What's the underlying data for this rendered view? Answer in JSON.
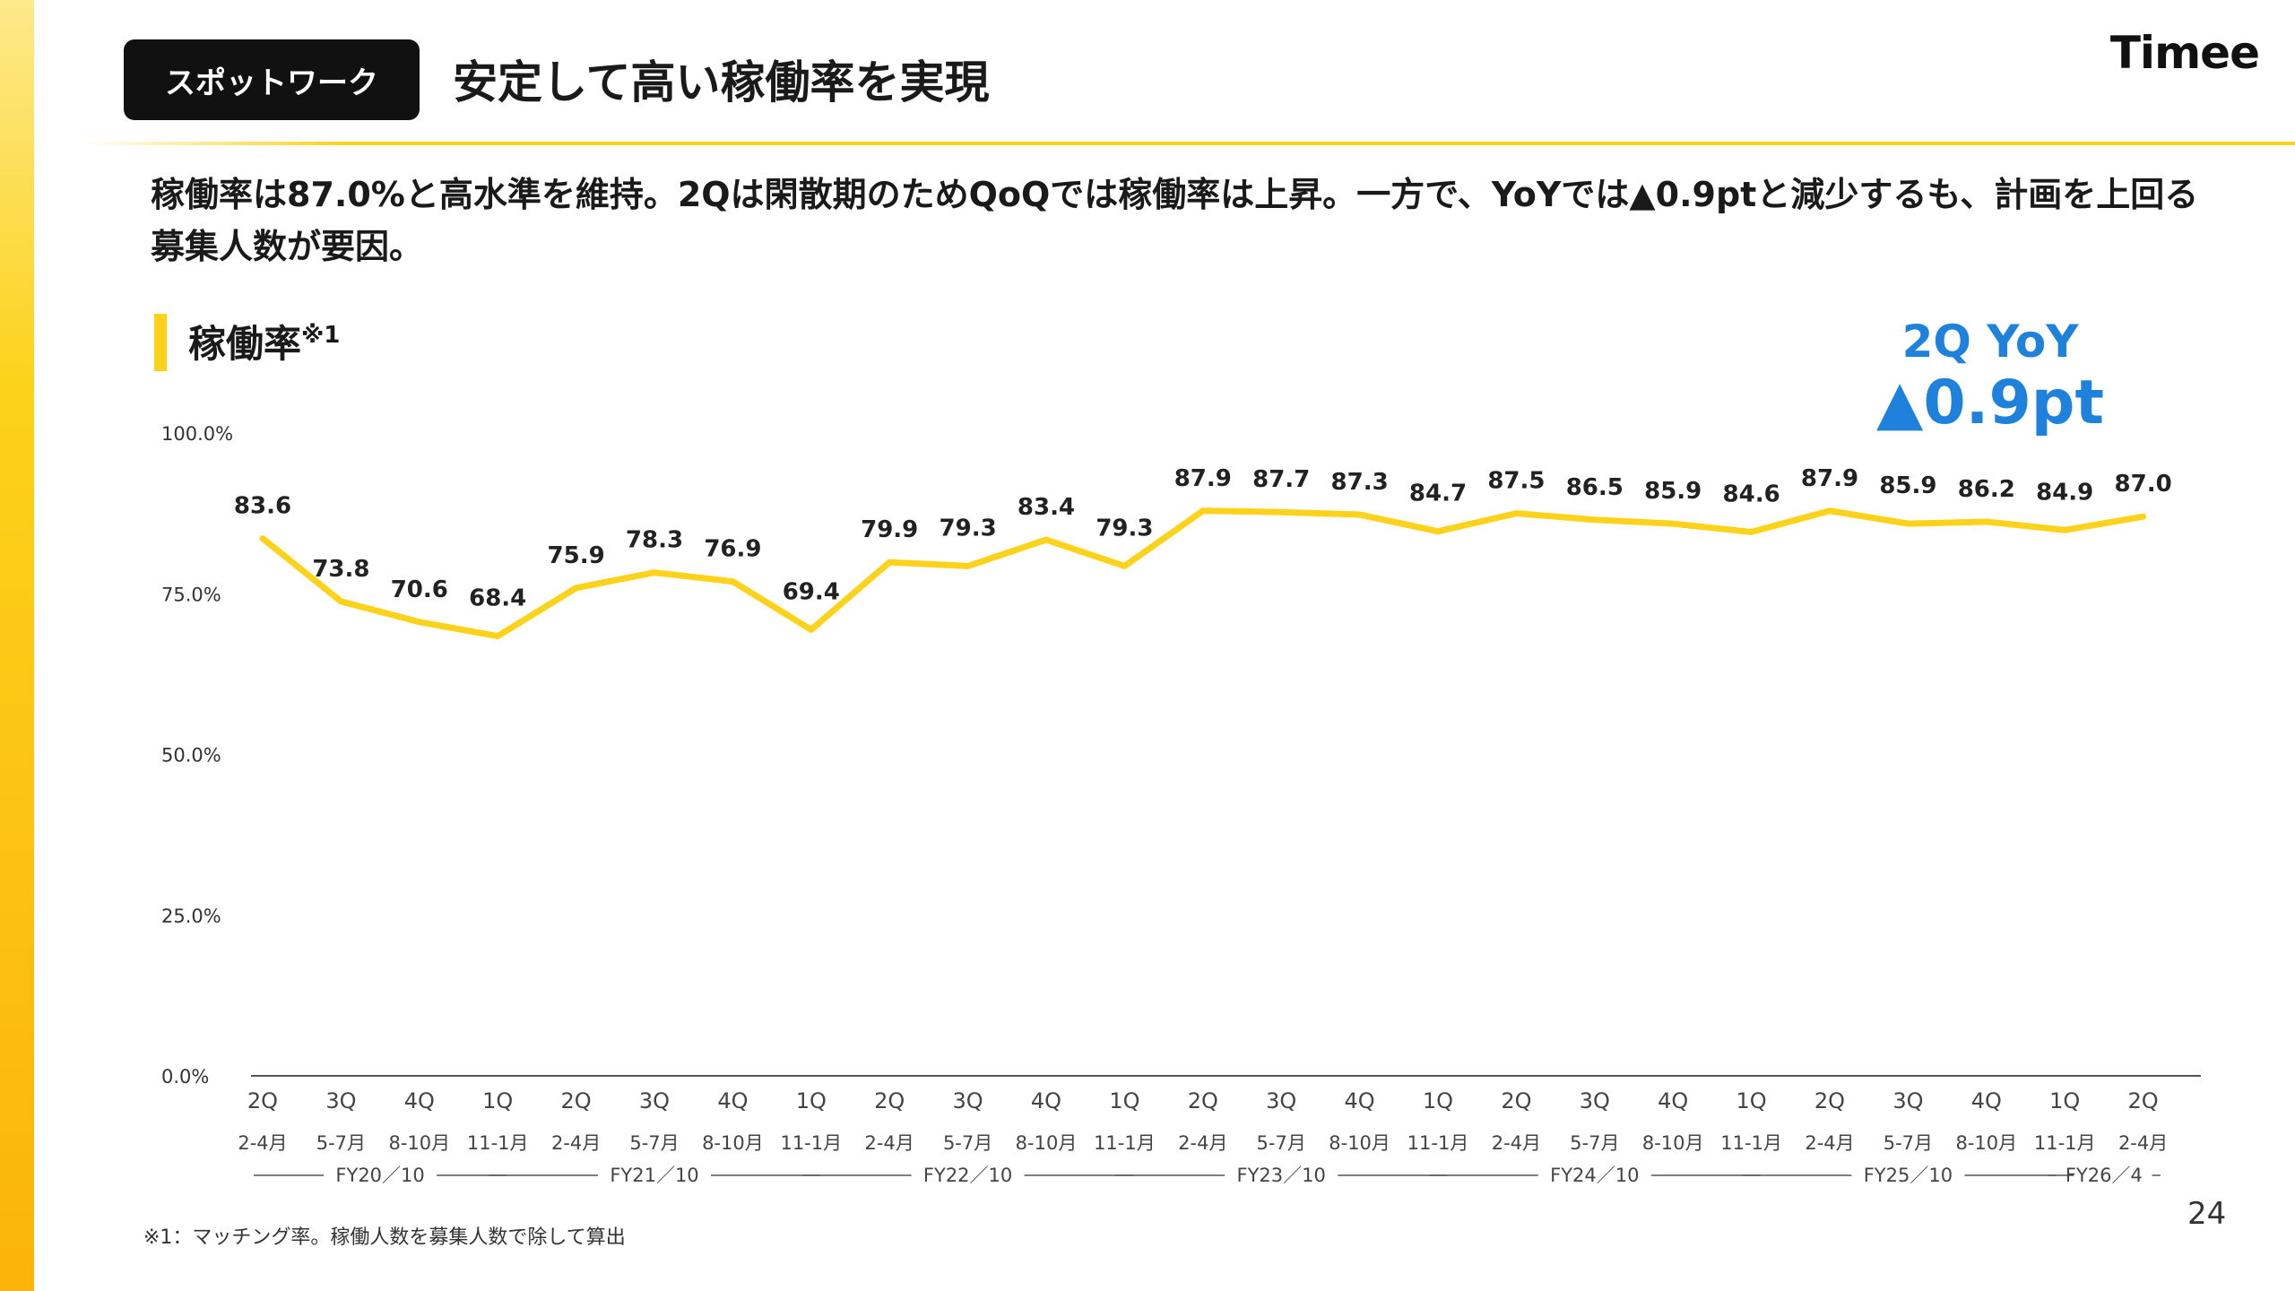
{
  "header": {
    "badge": "スポットワーク",
    "title": "安定して高い稼働率を実現",
    "logo": "Timee"
  },
  "lead_text": "稼働率は87.0%と高水準を維持。2Qは閑散期のためQoQでは稼働率は上昇。一方で、YoYでは▲0.9ptと減少するも、計画を上回る募集人数が要因。",
  "section": {
    "title": "稼働率",
    "sup": "※1"
  },
  "yoy": {
    "label": "2Q YoY",
    "value": "▲0.9pt"
  },
  "colors": {
    "accent": "#fcd21a",
    "yoy_blue": "#1e82dc",
    "badge_bg": "#111111"
  },
  "chart_data": {
    "type": "line",
    "categories": [
      "2Q",
      "3Q",
      "4Q",
      "1Q",
      "2Q",
      "3Q",
      "4Q",
      "1Q",
      "2Q",
      "3Q",
      "4Q",
      "1Q",
      "2Q",
      "3Q",
      "4Q",
      "1Q",
      "2Q",
      "3Q",
      "4Q",
      "1Q",
      "2Q",
      "3Q",
      "4Q",
      "1Q",
      "2Q"
    ],
    "months": [
      "2-4月",
      "5-7月",
      "8-10月",
      "11-1月",
      "2-4月",
      "5-7月",
      "8-10月",
      "11-1月",
      "2-4月",
      "5-7月",
      "8-10月",
      "11-1月",
      "2-4月",
      "5-7月",
      "8-10月",
      "11-1月",
      "2-4月",
      "5-7月",
      "8-10月",
      "11-1月",
      "2-4月",
      "5-7月",
      "8-10月",
      "11-1月",
      "2-4月"
    ],
    "values": [
      83.6,
      73.8,
      70.6,
      68.4,
      75.9,
      78.3,
      76.9,
      69.4,
      79.9,
      79.3,
      83.4,
      79.3,
      87.9,
      87.7,
      87.3,
      84.7,
      87.5,
      86.5,
      85.9,
      84.6,
      87.9,
      85.9,
      86.2,
      84.9,
      87.0
    ],
    "value_labels": [
      "83.6",
      "73.8",
      "70.6",
      "68.4",
      "75.9",
      "78.3",
      "76.9",
      "69.4",
      "79.9",
      "79.3",
      "83.4",
      "79.3",
      "87.9",
      "87.7",
      "87.3",
      "84.7",
      "87.5",
      "86.5",
      "85.9",
      "84.6",
      "87.9",
      "85.9",
      "86.2",
      "84.9",
      "87.0"
    ],
    "fiscal_years": [
      {
        "label": "FY20／10",
        "start": 0,
        "end": 3
      },
      {
        "label": "FY21／10",
        "start": 3,
        "end": 7
      },
      {
        "label": "FY22／10",
        "start": 7,
        "end": 11
      },
      {
        "label": "FY23／10",
        "start": 11,
        "end": 15
      },
      {
        "label": "FY24／10",
        "start": 15,
        "end": 19
      },
      {
        "label": "FY25／10",
        "start": 19,
        "end": 23
      },
      {
        "label": "FY26／4",
        "start": 23,
        "end": 24
      }
    ],
    "y_ticks": [
      0,
      25,
      50,
      75,
      100
    ],
    "y_tick_labels": [
      "0.0%",
      "25.0%",
      "50.0%",
      "75.0%",
      "100.0%"
    ],
    "ylim": [
      0,
      100
    ],
    "grid": false,
    "legend": "none",
    "line_color": "#fcd21a"
  },
  "footnote": "※1：マッチング率。稼働人数を募集人数で除して算出",
  "page_number": "24"
}
